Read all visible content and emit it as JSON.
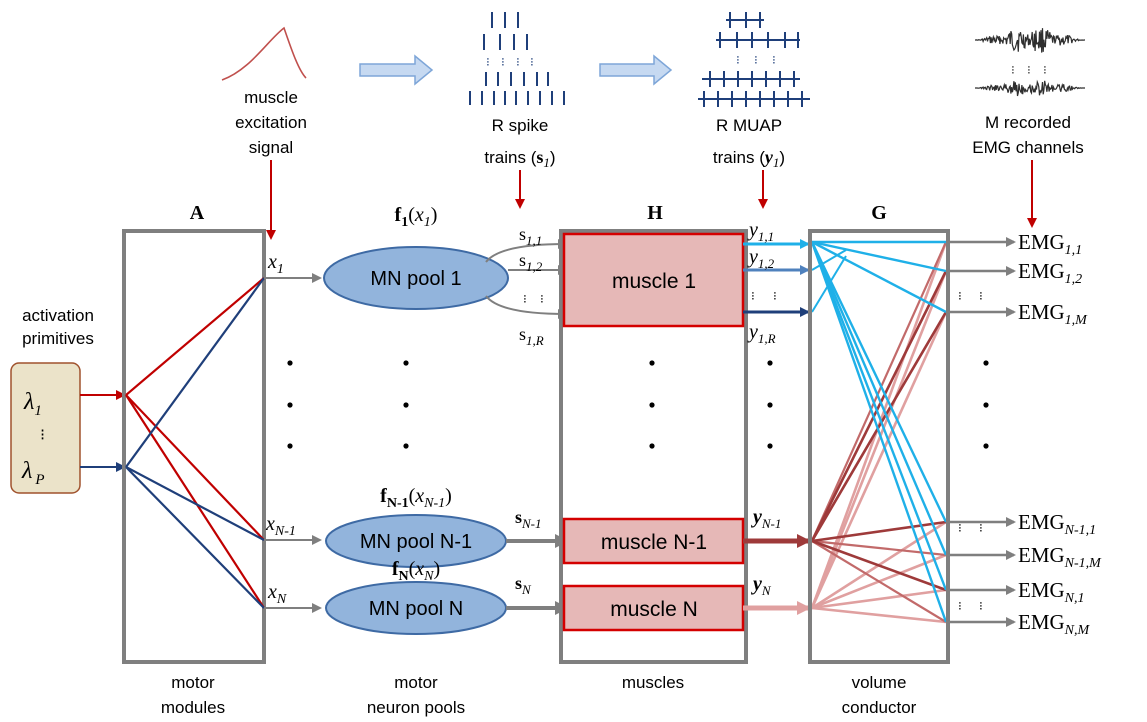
{
  "colors": {
    "box_gray": "#7f7f7f",
    "red_arrow": "#c00000",
    "primitive_fill": "#ebe3c9",
    "primitive_stroke": "#a0522d",
    "pool_fill": "#92b4dc",
    "pool_stroke": "#3e6aa4",
    "muscle_fill": "#e6b8b7",
    "muscle_stroke": "#d40000",
    "line_red": "#c00000",
    "line_blue": "#1f3f7a",
    "cyan": "#1fb0e8",
    "dark_red": "#9e3a3a",
    "mid_red": "#c26a6a",
    "pink": "#e0a0a0",
    "mid_blue": "#4f81bd",
    "trace": "#2f2f2f"
  },
  "top": {
    "excitation_label": [
      "muscle",
      "excitation",
      "signal"
    ],
    "spike_label_line1": "R spike",
    "spike_label_line2_prefix": "trains (",
    "spike_label_var": "s",
    "spike_label_sub": "1",
    "spike_label_suffix": ")",
    "muap_label_line1": "R MUAP",
    "muap_label_line2_prefix": "trains (",
    "muap_label_var": "y",
    "muap_label_sub": "1",
    "muap_label_suffix": ")",
    "emg_label": [
      "M recorded",
      "EMG channels"
    ]
  },
  "primitives": {
    "heading": [
      "activation",
      "primitives"
    ],
    "lambda_first": "λ",
    "lambda_first_sub": "1",
    "lambda_last": "λ",
    "lambda_last_sub": "P",
    "vdots": "⁝"
  },
  "boxes": {
    "A": "A",
    "H": "H",
    "G": "G",
    "A_caption": [
      "motor",
      "modules"
    ],
    "pools_caption": [
      "motor",
      "neuron pools"
    ],
    "H_caption": "muscles",
    "G_caption": [
      "volume",
      "conductor"
    ]
  },
  "inputs": {
    "x1": "x",
    "x1_sub": "1",
    "xN1": "x",
    "xN1_sub": "N-1",
    "xN": "x",
    "xN_sub": "N"
  },
  "pools": [
    {
      "label": "MN pool 1",
      "f": "f",
      "f_sub": "1",
      "arg": "x",
      "arg_sub": "1"
    },
    {
      "label": "MN pool N-1",
      "f": "f",
      "f_sub": "N-1",
      "arg": "x",
      "arg_sub": "N-1"
    },
    {
      "label": "MN pool N",
      "f": "f",
      "f_sub": "N",
      "arg": "x",
      "arg_sub": "N"
    }
  ],
  "spikes": {
    "s11": "1,1",
    "s12": "1,2",
    "s1R": "1,R",
    "sN1": "N-1",
    "sN": "N",
    "s": "s"
  },
  "muscles": [
    "muscle 1",
    "muscle N-1",
    "muscle N"
  ],
  "muaps": {
    "y": "y",
    "y11": "1,1",
    "y12": "1,2",
    "y1R": "1,R",
    "yN1": "N-1",
    "yN": "N"
  },
  "emg": {
    "prefix": "EMG",
    "channels": [
      "1,1",
      "1,2",
      "1,M",
      "N-1,1",
      "N-1,M",
      "N,1",
      "N,M"
    ]
  },
  "dots": "⋮"
}
